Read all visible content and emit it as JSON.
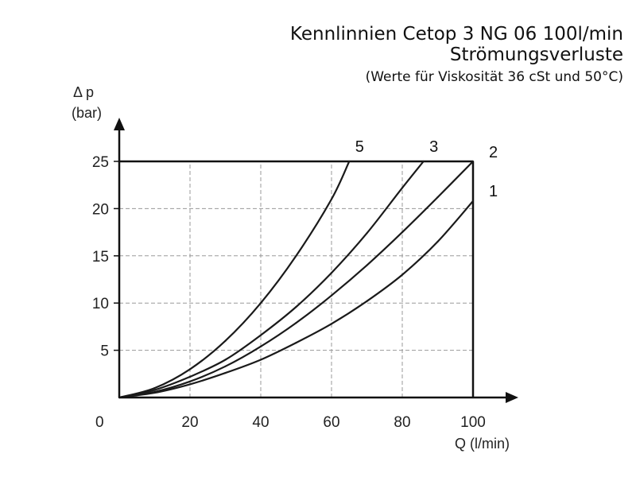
{
  "title": {
    "line1": "Kennlinnien Cetop 3 NG 06 100l/min",
    "line2": "Strömungsverluste",
    "line3": "(Werte für  Viskosität 36 cSt und 50°C)"
  },
  "chart_data": {
    "type": "line",
    "xlabel": "Q (l/min)",
    "ylabel_line1": "Δ p",
    "ylabel_line2": "(bar)",
    "origin_label": "0",
    "xlim": [
      0,
      100
    ],
    "ylim": [
      0,
      25
    ],
    "xticks": [
      20,
      40,
      60,
      80,
      100
    ],
    "yticks": [
      5,
      10,
      15,
      20,
      25
    ],
    "grid": true,
    "series": [
      {
        "name": "5",
        "x": [
          0,
          10,
          20,
          30,
          40,
          50,
          60,
          65
        ],
        "y": [
          0,
          1.0,
          3.0,
          6.0,
          10.0,
          15.0,
          21.0,
          25.0
        ]
      },
      {
        "name": "3",
        "x": [
          0,
          10,
          20,
          30,
          40,
          50,
          60,
          70,
          80,
          86
        ],
        "y": [
          0,
          0.8,
          2.2,
          4.0,
          6.6,
          9.6,
          13.2,
          17.4,
          22.2,
          25.0
        ]
      },
      {
        "name": "2",
        "x": [
          0,
          10,
          20,
          30,
          40,
          50,
          60,
          70,
          80,
          90,
          100
        ],
        "y": [
          0,
          0.6,
          1.7,
          3.3,
          5.4,
          7.9,
          10.8,
          14.0,
          17.5,
          21.2,
          25.0
        ]
      },
      {
        "name": "1",
        "x": [
          0,
          10,
          20,
          30,
          40,
          50,
          60,
          70,
          80,
          90,
          100
        ],
        "y": [
          0,
          0.5,
          1.4,
          2.6,
          4.0,
          5.8,
          7.8,
          10.2,
          13.0,
          16.5,
          20.8
        ]
      }
    ]
  }
}
